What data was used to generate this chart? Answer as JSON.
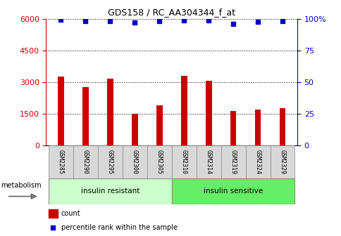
{
  "title": "GDS158 / RC_AA304344_f_at",
  "samples": [
    "GSM2285",
    "GSM2290",
    "GSM2295",
    "GSM2300",
    "GSM2305",
    "GSM2310",
    "GSM2314",
    "GSM2319",
    "GSM2324",
    "GSM2329"
  ],
  "counts": [
    3250,
    2750,
    3150,
    1480,
    1900,
    3300,
    3050,
    1620,
    1680,
    1750
  ],
  "percentiles": [
    99.5,
    98.0,
    98.5,
    97.0,
    98.0,
    99.0,
    98.8,
    96.0,
    97.5,
    98.0
  ],
  "bar_color": "#cc0000",
  "dot_color": "#0000cc",
  "ylim_left": [
    0,
    6000
  ],
  "ylim_right": [
    0,
    100
  ],
  "yticks_left": [
    0,
    1500,
    3000,
    4500,
    6000
  ],
  "yticks_right": [
    0,
    25,
    50,
    75,
    100
  ],
  "legend_count_label": "count",
  "legend_pct_label": "percentile rank within the sample",
  "metabolism_label": "metabolism",
  "group_resistant_color": "#ccffcc",
  "group_sensitive_color": "#66ee66",
  "sample_box_color": "#d8d8d8",
  "background_color": "#ffffff"
}
